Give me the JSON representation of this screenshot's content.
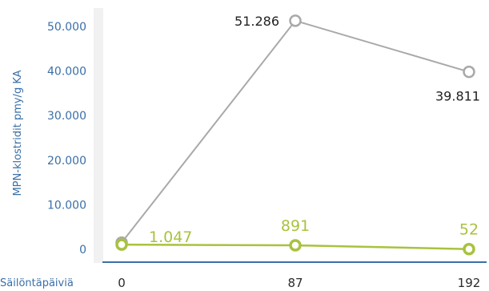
{
  "chart_data": {
    "type": "line",
    "ylabel": "MPN-klostridit pmy/g KA",
    "xlabel": "Säilöntäpäiviä",
    "categories": [
      "0",
      "87",
      "192"
    ],
    "ylim": [
      0,
      55000
    ],
    "yticks": [
      "0",
      "10.000",
      "20.000",
      "30.000",
      "40.000",
      "50.000"
    ],
    "ytick_values": [
      0,
      10000,
      20000,
      30000,
      40000,
      50000
    ],
    "grid": false,
    "series": [
      {
        "values": [
          1500,
          51286,
          39811
        ],
        "labels": [
          "",
          "51.286",
          "39.811"
        ],
        "color": "#a9a9a9"
      },
      {
        "values": [
          1047,
          891,
          52
        ],
        "labels": [
          "1.047",
          "891",
          "52"
        ],
        "color": "#a9c23f"
      }
    ],
    "axis_color": "#3a6fa8"
  }
}
